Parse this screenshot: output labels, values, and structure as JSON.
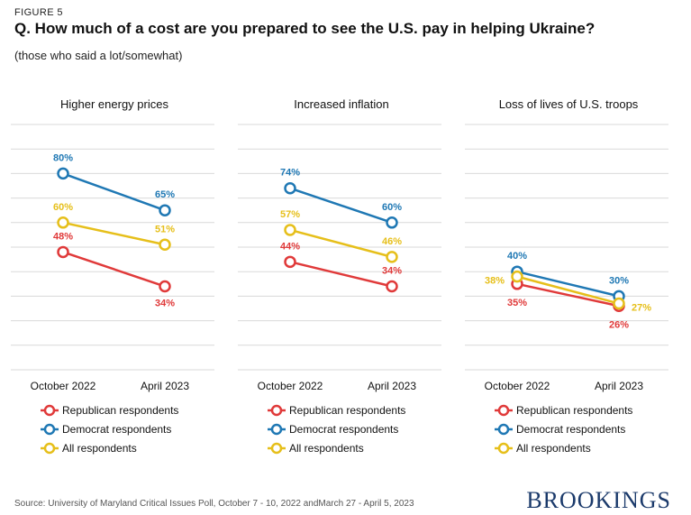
{
  "figure_label": "FIGURE 5",
  "title": "Q. How much of a cost are you prepared to see the U.S. pay in helping Ukraine?",
  "subtitle": "(those who said a lot/somewhat)",
  "source_label": "Source:",
  "source_text": "University of Maryland Critical Issues Poll, October 7 - 10, 2022 andMarch 27 - April 5, 2023",
  "brand": "BROOKINGS",
  "colors": {
    "republican": "#e03a3a",
    "democrat": "#1f78b4",
    "all": "#e6bf1a",
    "grid": "#d9d9d9"
  },
  "chart_data": [
    {
      "type": "line",
      "title": "Higher energy prices",
      "categories": [
        "October 2022",
        "April 2023"
      ],
      "ylim": [
        0,
        100
      ],
      "grid": true,
      "series": [
        {
          "name": "Republican respondents",
          "values": [
            48,
            34
          ],
          "labels": [
            "48%",
            "34%"
          ]
        },
        {
          "name": "Democrat respondents",
          "values": [
            80,
            65
          ],
          "labels": [
            "80%",
            "65%"
          ]
        },
        {
          "name": "All respondents",
          "values": [
            60,
            51
          ],
          "labels": [
            "60%",
            "51%"
          ]
        }
      ]
    },
    {
      "type": "line",
      "title": "Increased inflation",
      "categories": [
        "October 2022",
        "April 2023"
      ],
      "ylim": [
        0,
        100
      ],
      "grid": true,
      "series": [
        {
          "name": "Republican respondents",
          "values": [
            44,
            34
          ],
          "labels": [
            "44%",
            "34%"
          ]
        },
        {
          "name": "Democrat respondents",
          "values": [
            74,
            60
          ],
          "labels": [
            "74%",
            "60%"
          ]
        },
        {
          "name": "All respondents",
          "values": [
            57,
            46
          ],
          "labels": [
            "57%",
            "46%"
          ]
        }
      ]
    },
    {
      "type": "line",
      "title": "Loss of lives of U.S. troops",
      "categories": [
        "October 2022",
        "April 2023"
      ],
      "ylim": [
        0,
        100
      ],
      "grid": true,
      "series": [
        {
          "name": "Republican respondents",
          "values": [
            35,
            26
          ],
          "labels": [
            "35%",
            "26%"
          ]
        },
        {
          "name": "Democrat respondents",
          "values": [
            40,
            30
          ],
          "labels": [
            "40%",
            "30%"
          ]
        },
        {
          "name": "All respondents",
          "values": [
            38,
            27
          ],
          "labels": [
            "38%",
            "27%"
          ]
        }
      ]
    }
  ]
}
